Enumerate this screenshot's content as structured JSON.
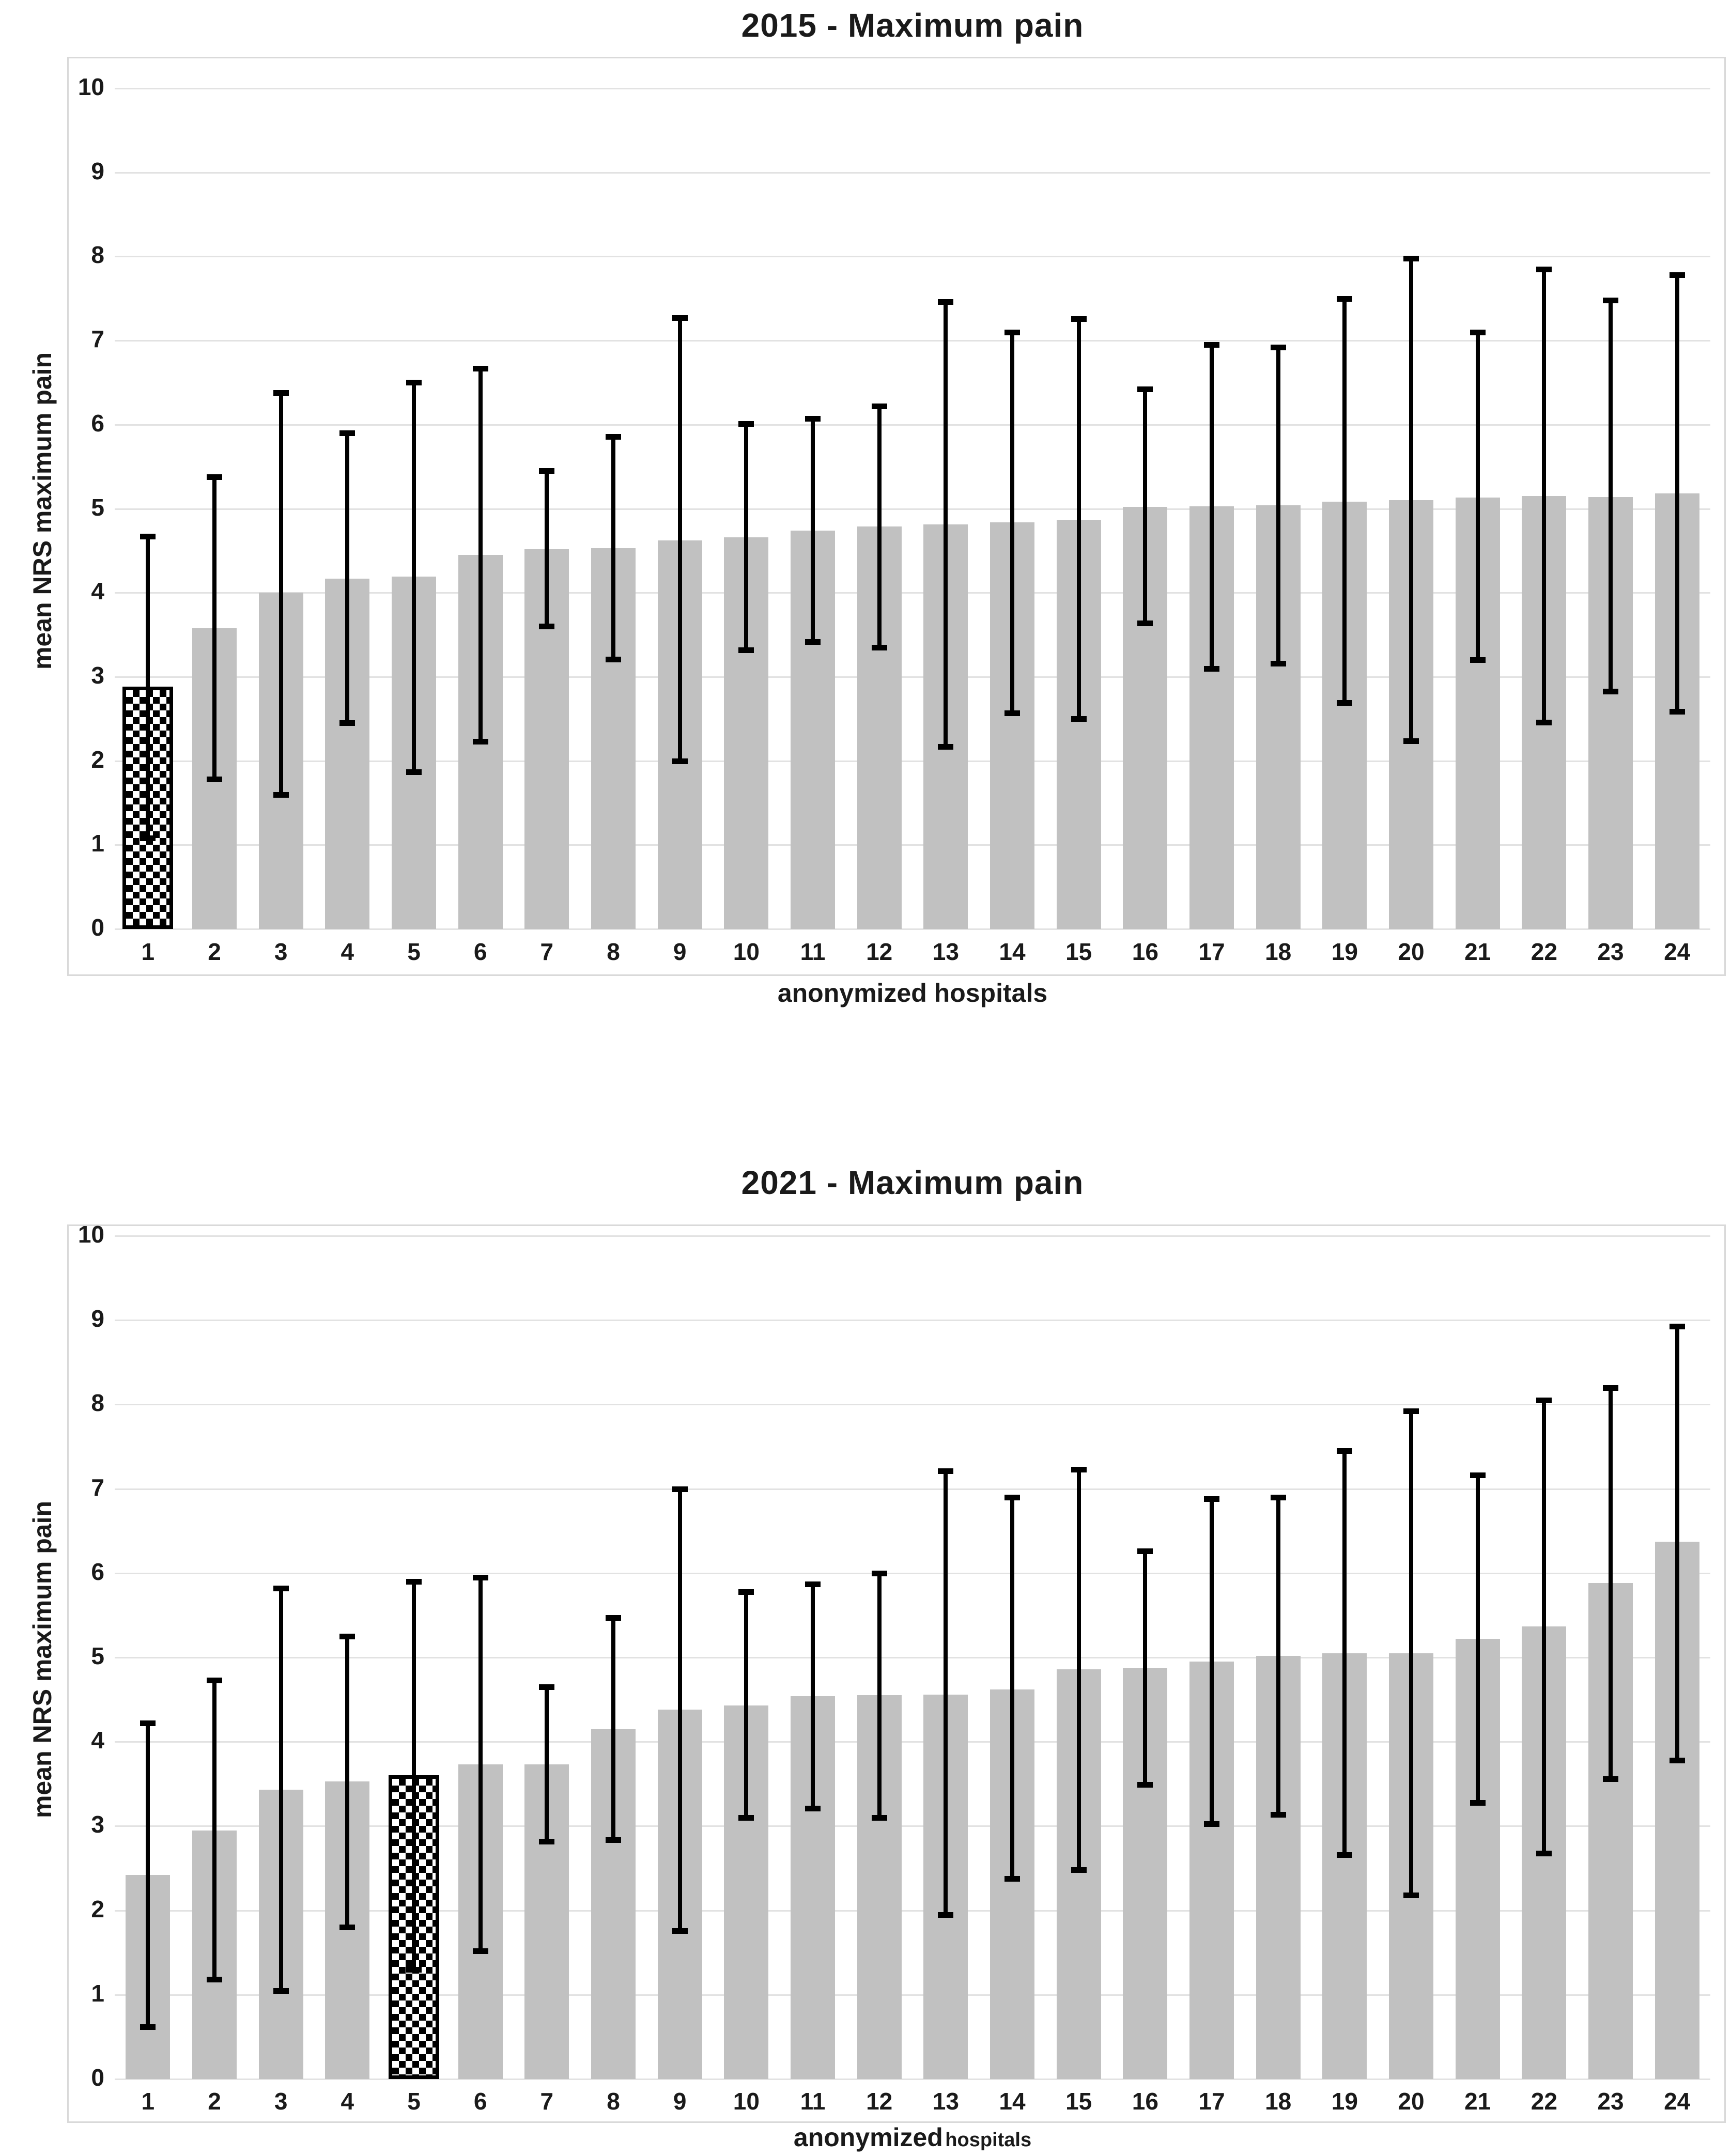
{
  "figure": {
    "background": "#ffffff",
    "bar_color": "#c1c1c1",
    "gridline_color": "#e2e2e2",
    "frame_color": "#d9d9d9",
    "error_bar_color": "#000000",
    "highlight_pattern": "black-white-checkerboard"
  },
  "chart_data": [
    {
      "type": "bar",
      "title": "2015 - Maximum pain",
      "ylabel": "mean NRS maximum pain",
      "xlabel": "anonymized hospitals",
      "xlabel_suffix": "",
      "ylim": [
        0,
        10
      ],
      "yticks": [
        10,
        9,
        8,
        7,
        6,
        5,
        4,
        3,
        2,
        1,
        0
      ],
      "grid": true,
      "legend": "none",
      "categories": [
        "1",
        "2",
        "3",
        "4",
        "5",
        "6",
        "7",
        "8",
        "9",
        "10",
        "11",
        "12",
        "13",
        "14",
        "15",
        "16",
        "17",
        "18",
        "19",
        "20",
        "21",
        "22",
        "23",
        "24"
      ],
      "values": [
        2.88,
        3.58,
        4.0,
        4.17,
        4.19,
        4.45,
        4.52,
        4.53,
        4.62,
        4.66,
        4.74,
        4.79,
        4.81,
        4.84,
        4.87,
        5.02,
        5.03,
        5.04,
        5.08,
        5.1,
        5.13,
        5.15,
        5.14,
        5.18
      ],
      "err_high": [
        4.67,
        5.38,
        6.38,
        5.9,
        6.5,
        6.67,
        5.45,
        5.86,
        7.27,
        6.01,
        6.07,
        6.22,
        7.46,
        7.1,
        7.26,
        6.42,
        6.95,
        6.92,
        7.5,
        7.98,
        7.1,
        7.85,
        7.48,
        7.78
      ],
      "err_low": [
        1.08,
        1.78,
        1.6,
        2.45,
        1.87,
        2.23,
        3.6,
        3.21,
        2.0,
        3.32,
        3.42,
        3.35,
        2.17,
        2.57,
        2.5,
        3.64,
        3.1,
        3.16,
        2.69,
        2.24,
        3.2,
        2.46,
        2.83,
        2.59
      ],
      "highlight_index": 0
    },
    {
      "type": "bar",
      "title": "2021 - Maximum pain",
      "ylabel": "mean NRS maximum pain",
      "xlabel": "anonymized",
      "xlabel_suffix": "hospitals",
      "ylim": [
        0,
        10
      ],
      "yticks": [
        10,
        9,
        8,
        7,
        6,
        5,
        4,
        3,
        2,
        1,
        0
      ],
      "grid": true,
      "legend": "none",
      "categories": [
        "1",
        "2",
        "3",
        "4",
        "5",
        "6",
        "7",
        "8",
        "9",
        "10",
        "11",
        "12",
        "13",
        "14",
        "15",
        "16",
        "17",
        "18",
        "19",
        "20",
        "21",
        "22",
        "23",
        "24"
      ],
      "values": [
        2.42,
        2.95,
        3.43,
        3.53,
        3.6,
        3.73,
        3.73,
        4.15,
        4.38,
        4.43,
        4.54,
        4.55,
        4.56,
        4.62,
        4.86,
        4.88,
        4.95,
        5.02,
        5.05,
        5.05,
        5.22,
        5.37,
        5.88,
        6.37
      ],
      "err_high": [
        4.22,
        4.73,
        5.82,
        5.25,
        5.9,
        5.95,
        4.65,
        5.47,
        7.0,
        5.78,
        5.87,
        6.0,
        7.21,
        6.9,
        7.23,
        6.26,
        6.88,
        6.9,
        7.45,
        7.92,
        7.16,
        8.05,
        8.2,
        8.93
      ],
      "err_low": [
        0.62,
        1.18,
        1.05,
        1.8,
        1.3,
        1.52,
        2.82,
        2.84,
        1.76,
        3.1,
        3.21,
        3.1,
        1.95,
        2.38,
        2.48,
        3.49,
        3.03,
        3.14,
        2.66,
        2.18,
        3.28,
        2.68,
        3.56,
        3.78
      ],
      "highlight_index": 4
    }
  ]
}
